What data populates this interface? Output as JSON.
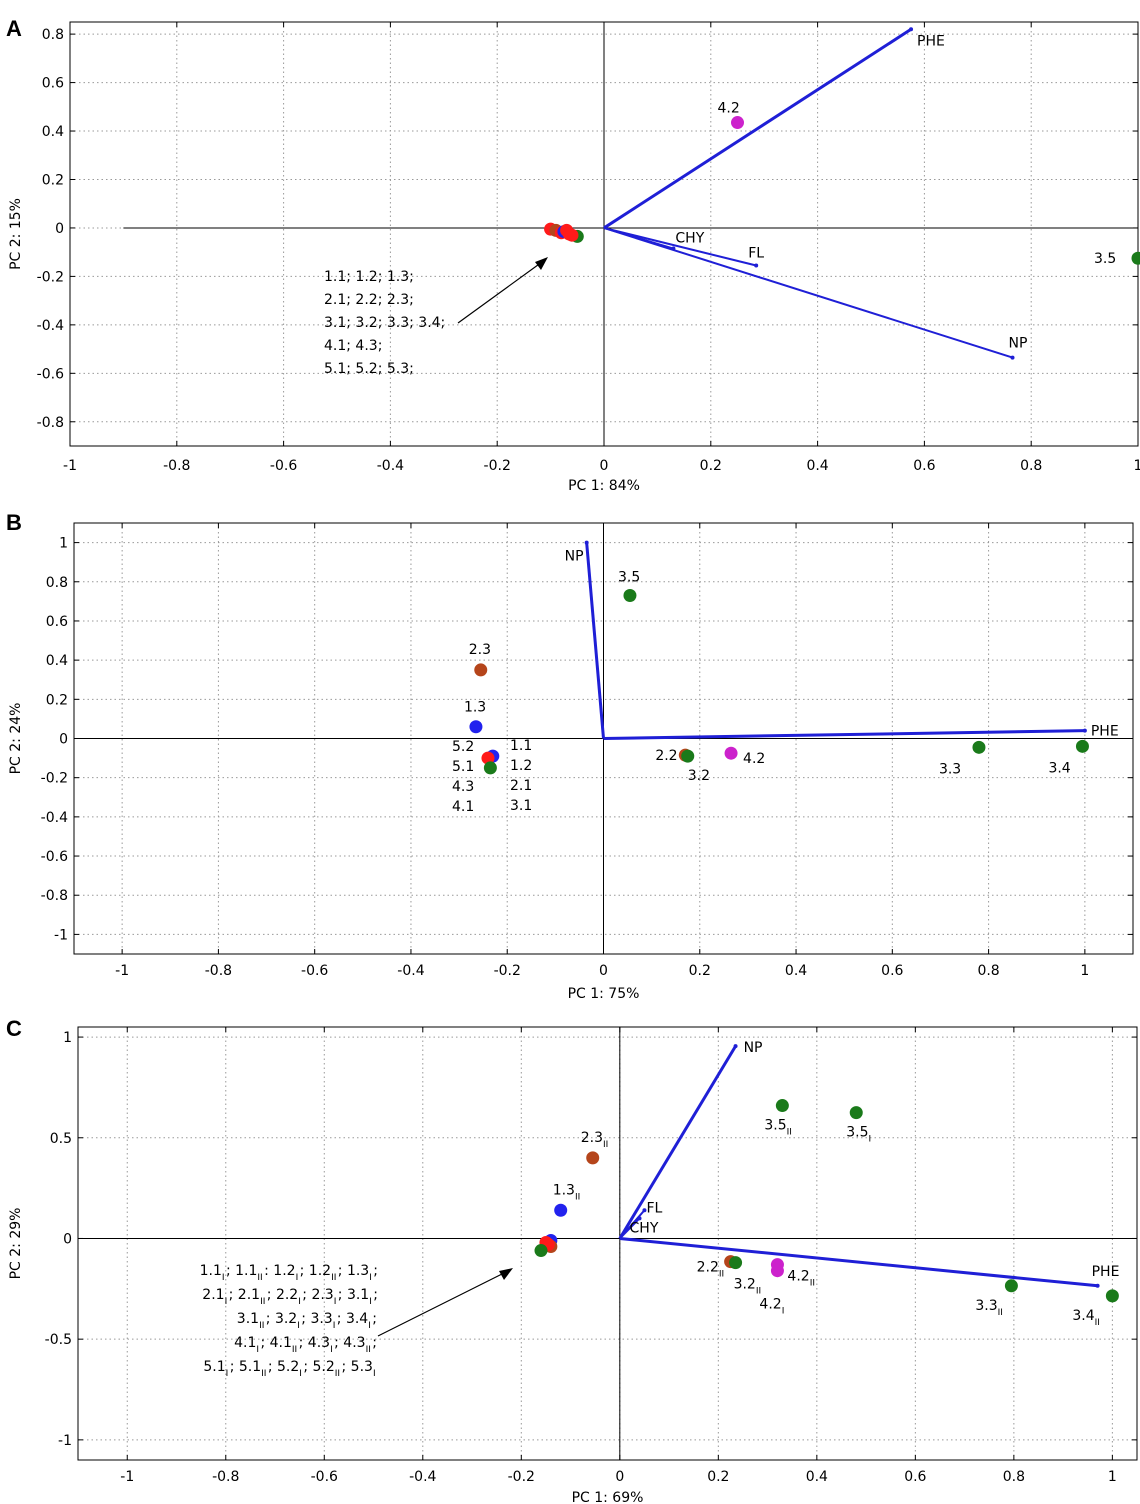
{
  "chart_data": [
    {
      "panel": "A",
      "type": "scatter",
      "xlabel": "PC 1: 84%",
      "ylabel": "PC 2: 15%",
      "xlim": [
        -1,
        1
      ],
      "ylim": [
        -0.9,
        0.85
      ],
      "xticks": [
        "-1",
        "-0.8",
        "-0.6",
        "-0.4",
        "-0.2",
        "0",
        "0.2",
        "0.4",
        "0.6",
        "0.8",
        "1"
      ],
      "yticks": [
        "-0.8",
        "-0.6",
        "-0.4",
        "-0.2",
        "0",
        "0.2",
        "0.4",
        "0.6",
        "0.8"
      ],
      "grid": true,
      "loadings": [
        {
          "name": "PHE",
          "x": 0.575,
          "y": 0.82
        },
        {
          "name": "CHY",
          "x": 0.13,
          "y": -0.085
        },
        {
          "name": "FL",
          "x": 0.285,
          "y": -0.155
        },
        {
          "name": "NP",
          "x": 0.765,
          "y": -0.535
        }
      ],
      "points": [
        {
          "label": "4.2",
          "x": 0.25,
          "y": 0.435,
          "color": "#cc22cc"
        },
        {
          "label": "3.5",
          "x": 1.0,
          "y": -0.125,
          "color": "#1a7a1a"
        },
        {
          "label": "",
          "x": -0.1,
          "y": -0.005,
          "color": "#ff1a1a"
        },
        {
          "label": "",
          "x": -0.09,
          "y": -0.01,
          "color": "#b5451b"
        },
        {
          "label": "",
          "x": -0.08,
          "y": -0.02,
          "color": "#ff1a1a"
        },
        {
          "label": "",
          "x": -0.075,
          "y": -0.015,
          "color": "#2222ee"
        },
        {
          "label": "",
          "x": -0.07,
          "y": -0.01,
          "color": "#ff1a1a"
        },
        {
          "label": "",
          "x": -0.065,
          "y": -0.025,
          "color": "#ff1a1a"
        },
        {
          "label": "",
          "x": -0.05,
          "y": -0.035,
          "color": "#1a7a1a"
        },
        {
          "label": "",
          "x": -0.06,
          "y": -0.03,
          "color": "#ff1a1a"
        }
      ],
      "annotation_lines": [
        "1.1; 1.2; 1.3;",
        "2.1; 2.2; 2.3;",
        "3.1; 3.2; 3.3; 3.4;",
        "4.1; 4.3;",
        "5.1; 5.2; 5.3;"
      ]
    },
    {
      "panel": "B",
      "type": "scatter",
      "xlabel": "PC 1: 75%",
      "ylabel": "PC 2: 24%",
      "xlim": [
        -1.1,
        1.1
      ],
      "ylim": [
        -1.1,
        1.1
      ],
      "xticks": [
        "-1",
        "-0.8",
        "-0.6",
        "-0.4",
        "-0.2",
        "0",
        "0.2",
        "0.4",
        "0.6",
        "0.8",
        "1"
      ],
      "yticks": [
        "-1",
        "-0.8",
        "-0.6",
        "-0.4",
        "-0.2",
        "0",
        "0.2",
        "0.4",
        "0.6",
        "0.8",
        "1"
      ],
      "grid": true,
      "loadings": [
        {
          "name": "NP",
          "x": -0.035,
          "y": 1.0
        },
        {
          "name": "PHE",
          "x": 1.0,
          "y": 0.04
        }
      ],
      "points": [
        {
          "label": "3.5",
          "x": 0.055,
          "y": 0.73,
          "color": "#1a7a1a"
        },
        {
          "label": "2.3",
          "x": -0.255,
          "y": 0.35,
          "color": "#b5451b"
        },
        {
          "label": "1.3",
          "x": -0.265,
          "y": 0.06,
          "color": "#2222ee"
        },
        {
          "label": "",
          "x": -0.23,
          "y": -0.09,
          "color": "#2222ee"
        },
        {
          "label": "",
          "x": -0.24,
          "y": -0.1,
          "color": "#ff1a1a"
        },
        {
          "label": "",
          "x": -0.235,
          "y": -0.15,
          "color": "#1a7a1a"
        },
        {
          "label": "2.2",
          "x": 0.17,
          "y": -0.085,
          "color": "#b5451b"
        },
        {
          "label": "3.2",
          "x": 0.175,
          "y": -0.09,
          "color": "#1a7a1a"
        },
        {
          "label": "4.2",
          "x": 0.265,
          "y": -0.075,
          "color": "#cc22cc"
        },
        {
          "label": "3.3",
          "x": 0.78,
          "y": -0.045,
          "color": "#1a7a1a"
        },
        {
          "label": "3.4",
          "x": 0.995,
          "y": -0.04,
          "color": "#1a7a1a"
        }
      ],
      "side_labels_left": [
        "5.2",
        "5.1",
        "4.3",
        "4.1"
      ],
      "side_labels_right": [
        "1.1",
        "1.2",
        "2.1",
        "3.1"
      ]
    },
    {
      "panel": "C",
      "type": "scatter",
      "xlabel": "PC 1: 69%",
      "ylabel": "PC 2: 29%",
      "xlim": [
        -1.1,
        1.05
      ],
      "ylim": [
        -1.1,
        1.05
      ],
      "xticks": [
        "-1",
        "-0.8",
        "-0.6",
        "-0.4",
        "-0.2",
        "0",
        "0.2",
        "0.4",
        "0.6",
        "0.8",
        "1"
      ],
      "yticks": [
        "-1",
        "-0.5",
        "0",
        "0.5",
        "1"
      ],
      "grid": true,
      "loadings": [
        {
          "name": "NP",
          "x": 0.235,
          "y": 0.955
        },
        {
          "name": "FL",
          "x": 0.05,
          "y": 0.14
        },
        {
          "name": "CHY",
          "x": 0.04,
          "y": 0.1
        },
        {
          "name": "PHE",
          "x": 0.97,
          "y": -0.235
        }
      ],
      "points": [
        {
          "label": "3.5",
          "sub": "II",
          "x": 0.33,
          "y": 0.66,
          "color": "#1a7a1a"
        },
        {
          "label": "3.5",
          "sub": "I",
          "x": 0.48,
          "y": 0.625,
          "color": "#1a7a1a"
        },
        {
          "label": "2.3",
          "sub": "II",
          "x": -0.055,
          "y": 0.4,
          "color": "#b5451b"
        },
        {
          "label": "1.3",
          "sub": "II",
          "x": -0.12,
          "y": 0.14,
          "color": "#2222ee"
        },
        {
          "label": "",
          "sub": "",
          "x": -0.14,
          "y": -0.01,
          "color": "#2222ee"
        },
        {
          "label": "",
          "sub": "",
          "x": -0.14,
          "y": -0.04,
          "color": "#b5451b"
        },
        {
          "label": "",
          "sub": "",
          "x": -0.15,
          "y": -0.02,
          "color": "#ff1a1a"
        },
        {
          "label": "",
          "sub": "",
          "x": -0.145,
          "y": -0.03,
          "color": "#ff1a1a"
        },
        {
          "label": "",
          "sub": "",
          "x": -0.16,
          "y": -0.06,
          "color": "#1a7a1a"
        },
        {
          "label": "2.2",
          "sub": "II",
          "x": 0.225,
          "y": -0.115,
          "color": "#b5451b"
        },
        {
          "label": "3.2",
          "sub": "II",
          "x": 0.235,
          "y": -0.12,
          "color": "#1a7a1a"
        },
        {
          "label": "4.2",
          "sub": "II",
          "x": 0.32,
          "y": -0.13,
          "color": "#cc22cc"
        },
        {
          "label": "4.2",
          "sub": "I",
          "x": 0.32,
          "y": -0.16,
          "color": "#cc22cc"
        },
        {
          "label": "3.3",
          "sub": "II",
          "x": 0.795,
          "y": -0.235,
          "color": "#1a7a1a"
        },
        {
          "label": "3.4",
          "sub": "II",
          "x": 1.0,
          "y": -0.285,
          "color": "#1a7a1a"
        }
      ],
      "annotation_lines": [
        [
          [
            "1.1",
            "I"
          ],
          [
            "; 1.1",
            "II"
          ],
          [
            ": 1.2",
            "I"
          ],
          [
            "; 1.2",
            "II"
          ],
          [
            "; 1.3",
            "I"
          ],
          [
            ";",
            ""
          ]
        ],
        [
          [
            "2.1",
            "I"
          ],
          [
            "; 2.1",
            "II"
          ],
          [
            "; 2.2",
            "I"
          ],
          [
            "; 2.3",
            "I"
          ],
          [
            "; 3.1",
            "I"
          ],
          [
            ";",
            ""
          ]
        ],
        [
          [
            "3.1",
            "II"
          ],
          [
            "; 3.2",
            "I"
          ],
          [
            "; 3.3",
            "I"
          ],
          [
            "; 3.4",
            "I"
          ],
          [
            ";",
            ""
          ]
        ],
        [
          [
            "4.1",
            "I"
          ],
          [
            "; 4.1",
            "II"
          ],
          [
            "; 4.3",
            "I"
          ],
          [
            "; 4.3",
            "II"
          ],
          [
            ";",
            ""
          ]
        ],
        [
          [
            "5.1",
            "I"
          ],
          [
            "; 5.1",
            "II"
          ],
          [
            "; 5.2",
            "I"
          ],
          [
            "; 5.2",
            "II"
          ],
          [
            "; 5.3",
            "I"
          ]
        ]
      ]
    }
  ]
}
